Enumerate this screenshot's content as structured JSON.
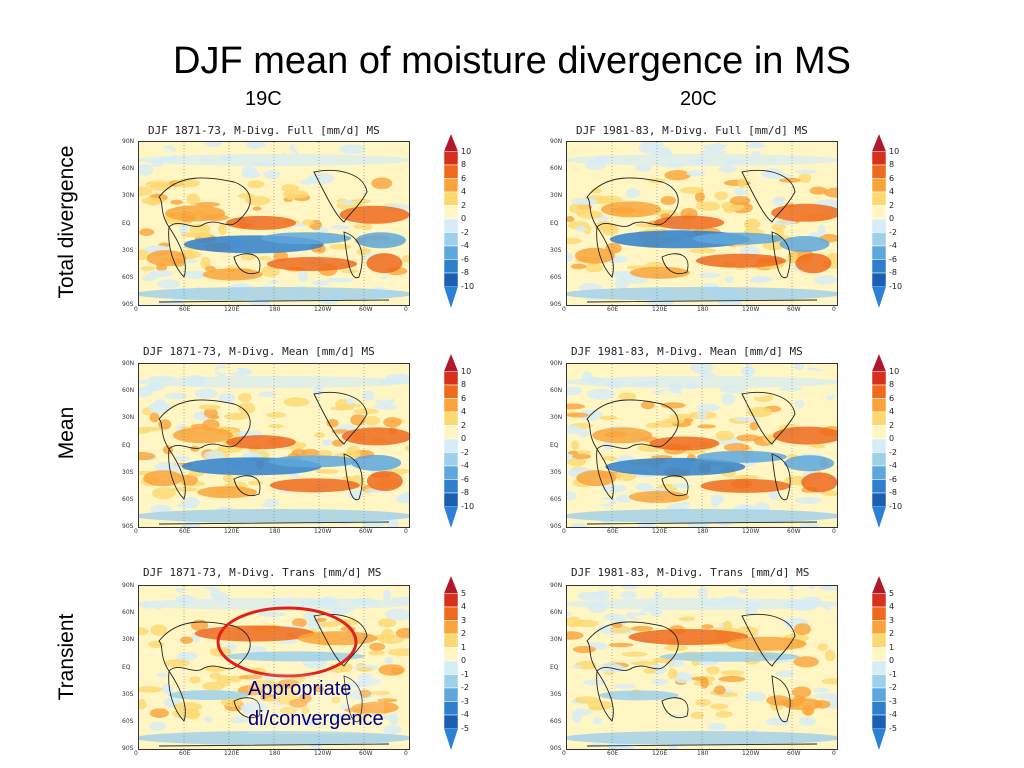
{
  "title": "DJF mean of moisture divergence in MS",
  "columns": [
    "19C",
    "20C"
  ],
  "rows": [
    "Total divergence",
    "Mean",
    "Transient"
  ],
  "panels": [
    {
      "title": "DJF 1871-73, M-Divg. Full [mm/d] MS",
      "colorbar": [
        "10",
        "8",
        "6",
        "4",
        "2",
        "0",
        "-2",
        "-4",
        "-6",
        "-8",
        "-10"
      ]
    },
    {
      "title": "DJF 1981-83, M-Divg. Full [mm/d] MS",
      "colorbar": [
        "10",
        "8",
        "6",
        "4",
        "2",
        "0",
        "-2",
        "-4",
        "-6",
        "-8",
        "-10"
      ]
    },
    {
      "title": "DJF 1871-73, M-Divg. Mean [mm/d] MS",
      "colorbar": [
        "10",
        "8",
        "6",
        "4",
        "2",
        "0",
        "-2",
        "-4",
        "-6",
        "-8",
        "-10"
      ]
    },
    {
      "title": "DJF 1981-83, M-Divg. Mean [mm/d] MS",
      "colorbar": [
        "10",
        "8",
        "6",
        "4",
        "2",
        "0",
        "-2",
        "-4",
        "-6",
        "-8",
        "-10"
      ]
    },
    {
      "title": "DJF 1871-73, M-Divg. Trans [mm/d] MS",
      "colorbar": [
        "5",
        "4",
        "3",
        "2",
        "1",
        "0",
        "-1",
        "-2",
        "-3",
        "-4",
        "-5"
      ]
    },
    {
      "title": "DJF 1981-83, M-Divg. Trans [mm/d] MS",
      "colorbar": [
        "5",
        "4",
        "3",
        "2",
        "1",
        "0",
        "-1",
        "-2",
        "-3",
        "-4",
        "-5"
      ]
    }
  ],
  "lat_ticks": [
    "90N",
    "60N",
    "30N",
    "EQ",
    "30S",
    "60S",
    "90S"
  ],
  "lon_ticks": [
    "0",
    "60E",
    "120E",
    "180",
    "120W",
    "60W",
    "0"
  ],
  "annotation": [
    "Appropriate",
    "di/convergence"
  ],
  "colors": {
    "colorbar": [
      "#b2182b",
      "#d6301f",
      "#ee6a1c",
      "#f9a43b",
      "#fcd870",
      "#fff6c4",
      "#d6ecf6",
      "#9fd0ea",
      "#5ea7dd",
      "#2f7fcc",
      "#1c5fb0",
      "#2b80d8"
    ],
    "highlight": "#e0201c",
    "annotation": "#000080"
  }
}
